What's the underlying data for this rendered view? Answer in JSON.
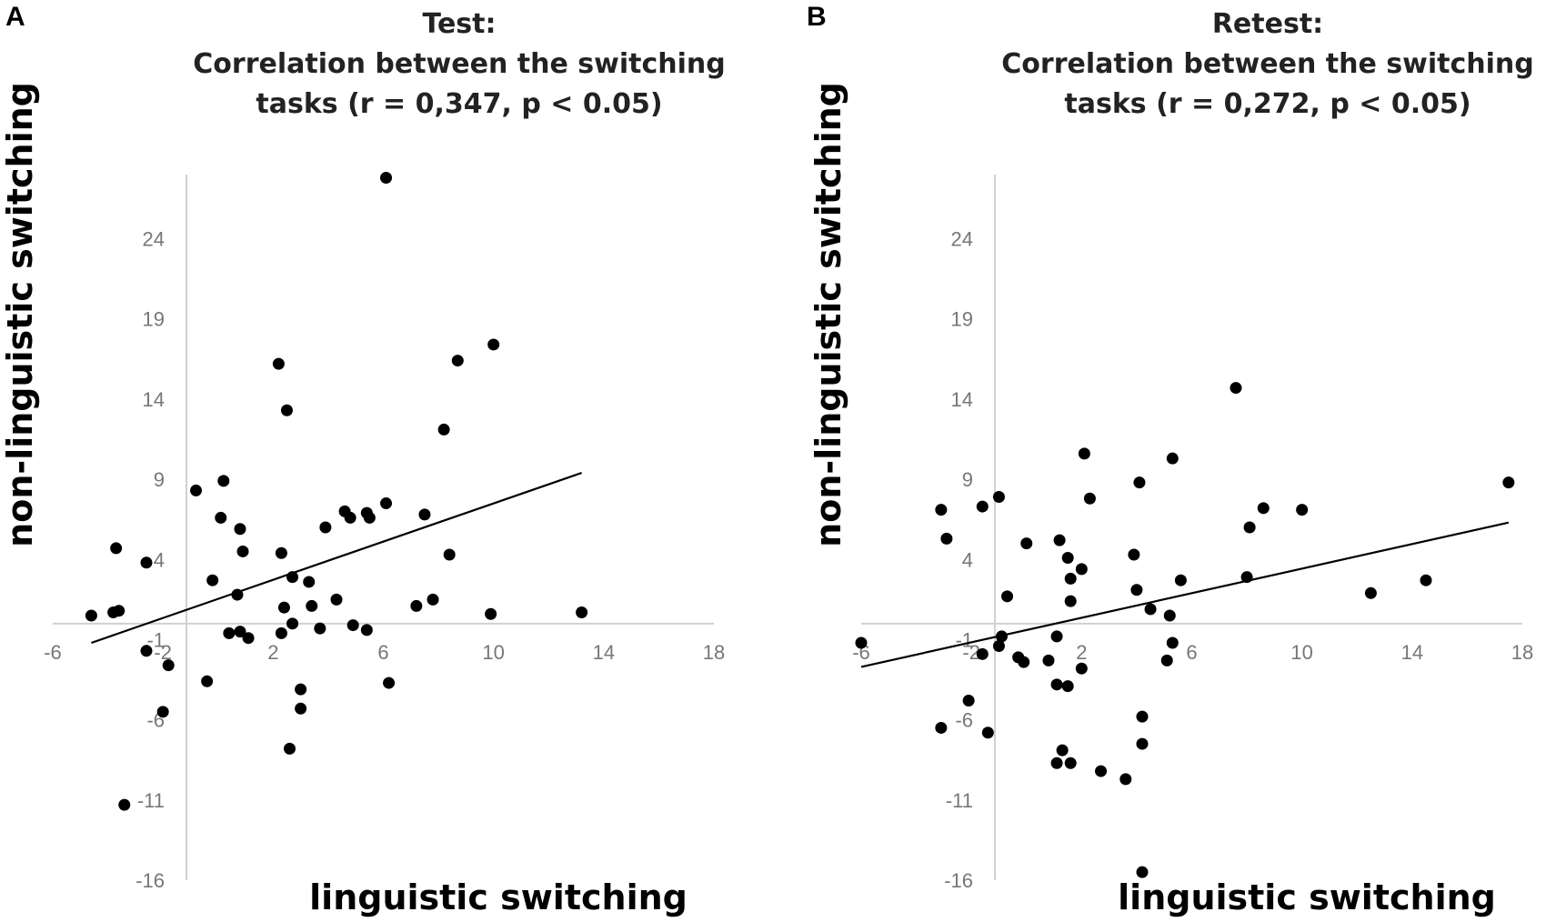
{
  "chart_data": [
    {
      "type": "scatter",
      "panel": "A",
      "title_lines": [
        "Test:",
        "Correlation between the switching",
        "tasks (r = 0,347, p < 0.05)"
      ],
      "xlabel": "linguistic switching",
      "ylabel": "non-linguistic switching",
      "xlim": [
        -6,
        18
      ],
      "ylim": [
        -16,
        28
      ],
      "x_ticks": [
        "-6",
        "-2",
        "2",
        "6",
        "10",
        "14",
        "18"
      ],
      "x_tick_values": [
        -6,
        -2,
        2,
        6,
        10,
        14,
        18
      ],
      "y_ticks": [
        "24",
        "19",
        "14",
        "9",
        "4",
        "-1",
        "-6",
        "-11",
        "-16"
      ],
      "y_tick_values": [
        24,
        19,
        14,
        9,
        4,
        -1,
        -6,
        -11,
        -16
      ],
      "trendline": [
        [
          -4.6,
          -1.2
        ],
        [
          13.2,
          9.4
        ]
      ],
      "points": [
        [
          6.1,
          27.8
        ],
        [
          2.2,
          16.2
        ],
        [
          10.0,
          17.4
        ],
        [
          8.7,
          16.4
        ],
        [
          2.5,
          13.3
        ],
        [
          8.2,
          12.1
        ],
        [
          -0.8,
          8.3
        ],
        [
          0.2,
          8.9
        ],
        [
          0.1,
          6.6
        ],
        [
          0.8,
          5.9
        ],
        [
          0.9,
          4.5
        ],
        [
          -3.7,
          4.7
        ],
        [
          -2.6,
          3.8
        ],
        [
          2.3,
          4.4
        ],
        [
          -0.2,
          2.7
        ],
        [
          2.7,
          2.9
        ],
        [
          3.3,
          2.6
        ],
        [
          3.9,
          6.0
        ],
        [
          4.6,
          7.0
        ],
        [
          4.8,
          6.6
        ],
        [
          5.4,
          6.9
        ],
        [
          5.5,
          6.6
        ],
        [
          6.1,
          7.5
        ],
        [
          7.5,
          6.8
        ],
        [
          8.4,
          4.3
        ],
        [
          0.7,
          1.8
        ],
        [
          4.3,
          1.5
        ],
        [
          3.4,
          1.1
        ],
        [
          2.4,
          1.0
        ],
        [
          7.2,
          1.1
        ],
        [
          7.8,
          1.5
        ],
        [
          -3.8,
          0.7
        ],
        [
          -3.6,
          0.8
        ],
        [
          -4.6,
          0.5
        ],
        [
          9.9,
          0.6
        ],
        [
          13.2,
          0.7
        ],
        [
          2.7,
          0.0
        ],
        [
          3.7,
          -0.3
        ],
        [
          4.9,
          -0.1
        ],
        [
          5.4,
          -0.4
        ],
        [
          0.4,
          -0.6
        ],
        [
          0.8,
          -0.5
        ],
        [
          1.1,
          -0.9
        ],
        [
          2.3,
          -0.6
        ],
        [
          -2.6,
          -1.7
        ],
        [
          -1.8,
          -2.6
        ],
        [
          -0.4,
          -3.6
        ],
        [
          3.0,
          -4.1
        ],
        [
          6.2,
          -3.7
        ],
        [
          3.0,
          -5.3
        ],
        [
          -2.0,
          -5.5
        ],
        [
          2.6,
          -7.8
        ],
        [
          -3.4,
          -11.3
        ]
      ]
    },
    {
      "type": "scatter",
      "panel": "B",
      "title_lines": [
        "Retest:",
        "Correlation between the switching",
        "tasks (r = 0,272, p < 0.05)"
      ],
      "xlabel": "linguistic switching",
      "ylabel": "non-linguistic switching",
      "xlim": [
        -6,
        18
      ],
      "ylim": [
        -16,
        28
      ],
      "x_ticks": [
        "-6",
        "-2",
        "2",
        "6",
        "10",
        "14",
        "18"
      ],
      "x_tick_values": [
        -6,
        -2,
        2,
        6,
        10,
        14,
        18
      ],
      "y_ticks": [
        "24",
        "19",
        "14",
        "9",
        "4",
        "-1",
        "-6",
        "-11",
        "-16"
      ],
      "y_tick_values": [
        24,
        19,
        14,
        9,
        4,
        -1,
        -6,
        -11,
        -16
      ],
      "trendline": [
        [
          -6,
          -2.7
        ],
        [
          17.5,
          6.3
        ]
      ],
      "points": [
        [
          7.6,
          14.7
        ],
        [
          2.1,
          10.6
        ],
        [
          5.3,
          10.3
        ],
        [
          4.1,
          8.8
        ],
        [
          17.5,
          8.8
        ],
        [
          -1.0,
          7.9
        ],
        [
          2.3,
          7.8
        ],
        [
          -1.6,
          7.3
        ],
        [
          -3.1,
          7.1
        ],
        [
          8.6,
          7.2
        ],
        [
          10.0,
          7.1
        ],
        [
          -2.9,
          5.3
        ],
        [
          0.0,
          5.0
        ],
        [
          1.2,
          5.2
        ],
        [
          8.1,
          6.0
        ],
        [
          1.5,
          4.1
        ],
        [
          2.0,
          3.4
        ],
        [
          3.9,
          4.3
        ],
        [
          1.6,
          2.8
        ],
        [
          5.6,
          2.7
        ],
        [
          8.0,
          2.9
        ],
        [
          4.0,
          2.1
        ],
        [
          12.5,
          1.9
        ],
        [
          14.5,
          2.7
        ],
        [
          -0.7,
          1.7
        ],
        [
          1.6,
          1.4
        ],
        [
          4.5,
          0.9
        ],
        [
          5.2,
          0.5
        ],
        [
          -0.9,
          -0.8
        ],
        [
          1.1,
          -0.8
        ],
        [
          5.3,
          -1.2
        ],
        [
          -6.0,
          -1.2
        ],
        [
          -1.6,
          -1.9
        ],
        [
          -0.3,
          -2.1
        ],
        [
          -1.0,
          -1.4
        ],
        [
          -0.1,
          -2.4
        ],
        [
          0.8,
          -2.3
        ],
        [
          2.0,
          -2.8
        ],
        [
          5.1,
          -2.3
        ],
        [
          1.1,
          -3.8
        ],
        [
          1.5,
          -3.9
        ],
        [
          -2.1,
          -4.8
        ],
        [
          4.2,
          -5.8
        ],
        [
          -3.1,
          -6.5
        ],
        [
          -1.4,
          -6.8
        ],
        [
          1.3,
          -7.9
        ],
        [
          4.2,
          -7.5
        ],
        [
          1.1,
          -8.7
        ],
        [
          1.6,
          -8.7
        ],
        [
          2.7,
          -9.2
        ],
        [
          3.6,
          -9.7
        ],
        [
          4.2,
          -15.5
        ]
      ]
    }
  ]
}
